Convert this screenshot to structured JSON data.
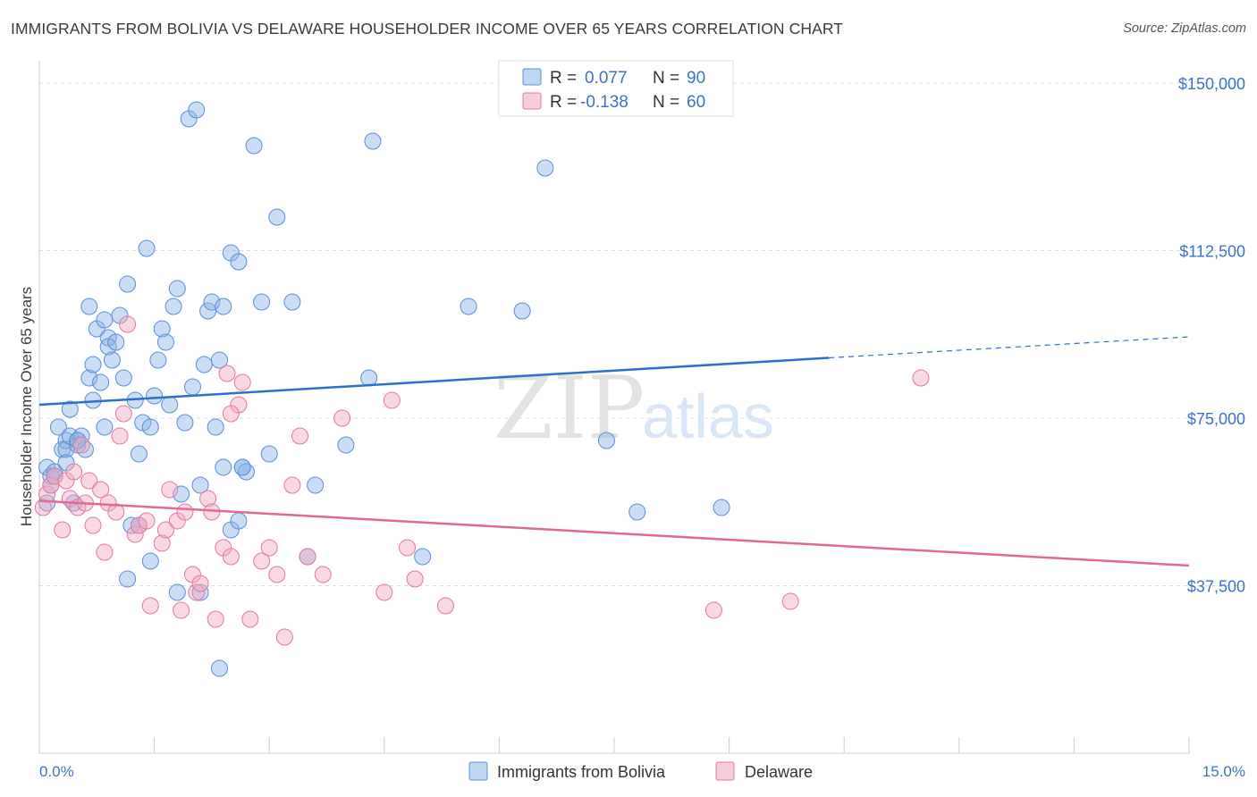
{
  "title": "IMMIGRANTS FROM BOLIVIA VS DELAWARE HOUSEHOLDER INCOME OVER 65 YEARS CORRELATION CHART",
  "source": "Source: ZipAtlas.com",
  "watermark": {
    "zip": "ZIP",
    "atlas": "atlas"
  },
  "legend_top": {
    "r_label": "R =",
    "n_label": "N =",
    "rows": [
      {
        "r_value": "0.077",
        "n_value": "90",
        "color": "#8ab4e8"
      },
      {
        "r_value": "-0.138",
        "n_value": "60",
        "color": "#f2a6c0"
      }
    ]
  },
  "legend_bottom": [
    {
      "label": "Immigrants from Bolivia",
      "color": "#8ab4e8"
    },
    {
      "label": "Delaware",
      "color": "#f2a6c0"
    }
  ],
  "chart_data": {
    "type": "scatter",
    "xlabel": "",
    "ylabel": "Householder Income Over 65 years",
    "xlim": [
      0,
      15
    ],
    "ylim": [
      0,
      155000
    ],
    "x_tick_labels": {
      "left": "0.0%",
      "right": "15.0%"
    },
    "y_ticks": [
      {
        "value": 37500,
        "label": "$37,500"
      },
      {
        "value": 75000,
        "label": "$75,000"
      },
      {
        "value": 112500,
        "label": "$112,500"
      },
      {
        "value": 150000,
        "label": "$150,000"
      }
    ],
    "grid": true,
    "series": [
      {
        "name": "Immigrants from Bolivia",
        "color": "#8ab4e8",
        "stroke": "#5b8fd6",
        "trend": {
          "x0": 0.0,
          "y0": 78000,
          "x1": 10.3,
          "y1": 88500,
          "dashed_to_x": 15.0,
          "dashed_to_y": 93200,
          "color": "#2f6fcc"
        },
        "points": [
          [
            0.1,
            64000
          ],
          [
            0.15,
            62000
          ],
          [
            0.2,
            63000
          ],
          [
            0.25,
            73000
          ],
          [
            0.3,
            68000
          ],
          [
            0.35,
            70000
          ],
          [
            0.35,
            68000
          ],
          [
            0.4,
            77000
          ],
          [
            0.4,
            71000
          ],
          [
            0.45,
            56000
          ],
          [
            0.5,
            70000
          ],
          [
            0.5,
            69000
          ],
          [
            0.55,
            71000
          ],
          [
            0.6,
            68000
          ],
          [
            0.65,
            84000
          ],
          [
            0.65,
            100000
          ],
          [
            0.7,
            87000
          ],
          [
            0.7,
            79000
          ],
          [
            0.75,
            95000
          ],
          [
            0.8,
            83000
          ],
          [
            0.85,
            97000
          ],
          [
            0.85,
            73000
          ],
          [
            0.9,
            93000
          ],
          [
            0.9,
            91000
          ],
          [
            0.95,
            88000
          ],
          [
            1.0,
            92000
          ],
          [
            1.05,
            98000
          ],
          [
            1.1,
            84000
          ],
          [
            1.15,
            105000
          ],
          [
            1.2,
            51000
          ],
          [
            1.25,
            79000
          ],
          [
            1.3,
            67000
          ],
          [
            1.35,
            74000
          ],
          [
            1.4,
            113000
          ],
          [
            1.45,
            73000
          ],
          [
            1.5,
            80000
          ],
          [
            1.55,
            88000
          ],
          [
            1.6,
            95000
          ],
          [
            1.65,
            92000
          ],
          [
            1.7,
            78000
          ],
          [
            1.75,
            100000
          ],
          [
            1.8,
            104000
          ],
          [
            1.85,
            58000
          ],
          [
            1.9,
            74000
          ],
          [
            1.95,
            142000
          ],
          [
            2.0,
            82000
          ],
          [
            2.05,
            144000
          ],
          [
            2.1,
            60000
          ],
          [
            2.15,
            87000
          ],
          [
            2.2,
            99000
          ],
          [
            2.25,
            101000
          ],
          [
            2.3,
            73000
          ],
          [
            2.35,
            88000
          ],
          [
            2.4,
            100000
          ],
          [
            2.5,
            112000
          ],
          [
            2.6,
            110000
          ],
          [
            2.65,
            64000
          ],
          [
            2.7,
            63000
          ],
          [
            2.8,
            136000
          ],
          [
            2.9,
            101000
          ],
          [
            3.0,
            67000
          ],
          [
            3.1,
            120000
          ],
          [
            3.3,
            101000
          ],
          [
            3.5,
            44000
          ],
          [
            3.6,
            60000
          ],
          [
            4.0,
            69000
          ],
          [
            4.3,
            84000
          ],
          [
            4.35,
            137000
          ],
          [
            5.0,
            44000
          ],
          [
            5.6,
            100000
          ],
          [
            6.3,
            99000
          ],
          [
            6.6,
            131000
          ],
          [
            7.4,
            70000
          ],
          [
            7.8,
            54000
          ],
          [
            8.9,
            55000
          ],
          [
            1.15,
            39000
          ],
          [
            1.45,
            43000
          ],
          [
            1.8,
            36000
          ],
          [
            2.1,
            36000
          ],
          [
            2.35,
            19000
          ],
          [
            2.5,
            50000
          ],
          [
            2.65,
            64000
          ],
          [
            1.3,
            51000
          ],
          [
            0.1,
            56000
          ],
          [
            0.15,
            60000
          ],
          [
            0.2,
            62000
          ],
          [
            0.5,
            70000
          ],
          [
            0.35,
            65000
          ],
          [
            2.4,
            64000
          ],
          [
            2.6,
            52000
          ]
        ]
      },
      {
        "name": "Delaware",
        "color": "#f2a6c0",
        "stroke": "#e07aa0",
        "trend": {
          "x0": 0.0,
          "y0": 56500,
          "x1": 15.0,
          "y1": 42000,
          "color": "#e0689a"
        },
        "points": [
          [
            0.05,
            55000
          ],
          [
            0.1,
            58000
          ],
          [
            0.15,
            60000
          ],
          [
            0.2,
            62000
          ],
          [
            0.3,
            50000
          ],
          [
            0.35,
            61000
          ],
          [
            0.4,
            57000
          ],
          [
            0.45,
            63000
          ],
          [
            0.5,
            55000
          ],
          [
            0.55,
            69000
          ],
          [
            0.6,
            56000
          ],
          [
            0.65,
            61000
          ],
          [
            0.7,
            51000
          ],
          [
            0.8,
            59000
          ],
          [
            0.85,
            45000
          ],
          [
            0.9,
            56000
          ],
          [
            1.0,
            54000
          ],
          [
            1.05,
            71000
          ],
          [
            1.1,
            76000
          ],
          [
            1.15,
            96000
          ],
          [
            1.25,
            49000
          ],
          [
            1.3,
            51000
          ],
          [
            1.4,
            52000
          ],
          [
            1.45,
            33000
          ],
          [
            1.6,
            47000
          ],
          [
            1.65,
            50000
          ],
          [
            1.7,
            59000
          ],
          [
            1.8,
            52000
          ],
          [
            1.85,
            32000
          ],
          [
            1.9,
            54000
          ],
          [
            2.0,
            40000
          ],
          [
            2.05,
            36000
          ],
          [
            2.1,
            38000
          ],
          [
            2.2,
            57000
          ],
          [
            2.25,
            54000
          ],
          [
            2.3,
            30000
          ],
          [
            2.4,
            46000
          ],
          [
            2.45,
            85000
          ],
          [
            2.5,
            44000
          ],
          [
            2.6,
            78000
          ],
          [
            2.65,
            83000
          ],
          [
            2.75,
            30000
          ],
          [
            2.9,
            43000
          ],
          [
            3.0,
            46000
          ],
          [
            3.1,
            40000
          ],
          [
            3.2,
            26000
          ],
          [
            3.3,
            60000
          ],
          [
            3.4,
            71000
          ],
          [
            3.5,
            44000
          ],
          [
            3.7,
            40000
          ],
          [
            3.95,
            75000
          ],
          [
            4.5,
            36000
          ],
          [
            4.6,
            79000
          ],
          [
            4.8,
            46000
          ],
          [
            4.9,
            39000
          ],
          [
            5.3,
            33000
          ],
          [
            8.8,
            32000
          ],
          [
            9.8,
            34000
          ],
          [
            11.5,
            84000
          ],
          [
            2.5,
            76000
          ]
        ]
      }
    ]
  }
}
